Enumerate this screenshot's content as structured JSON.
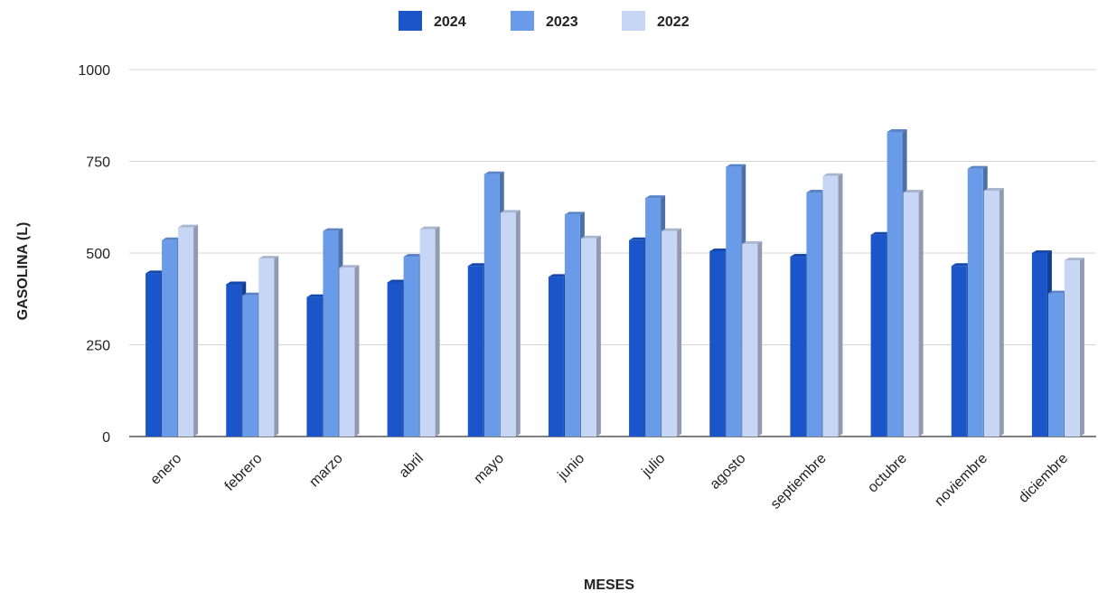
{
  "chart_data": {
    "type": "bar",
    "categories": [
      "enero",
      "febrero",
      "marzo",
      "abril",
      "mayo",
      "junio",
      "julio",
      "agosto",
      "septiembre",
      "octubre",
      "noviembre",
      "diciembre"
    ],
    "series": [
      {
        "name": "2024",
        "color": "#1a56c9",
        "values": [
          445,
          415,
          380,
          420,
          465,
          435,
          535,
          505,
          490,
          550,
          465,
          500
        ]
      },
      {
        "name": "2023",
        "color": "#6a9be8",
        "values": [
          535,
          385,
          560,
          490,
          715,
          605,
          650,
          735,
          665,
          830,
          730,
          390
        ]
      },
      {
        "name": "2022",
        "color": "#c8d6f5",
        "values": [
          570,
          485,
          460,
          565,
          610,
          540,
          560,
          525,
          710,
          665,
          670,
          480
        ]
      }
    ],
    "xlabel": "MESES",
    "ylabel": "GASOLINA (L)",
    "ylim": [
      0,
      1000
    ],
    "yticks": [
      0,
      250,
      500,
      750,
      1000
    ],
    "grid": true,
    "legend_position": "top-center",
    "style": "3d-columns"
  }
}
